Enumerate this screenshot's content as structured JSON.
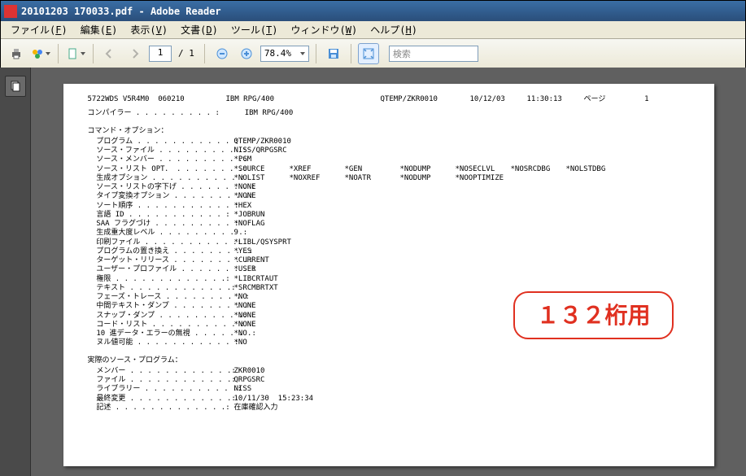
{
  "window": {
    "title": "20101203 170033.pdf - Adobe Reader"
  },
  "menubar": {
    "items": [
      {
        "label": "ファイル",
        "accel": "F"
      },
      {
        "label": "編集",
        "accel": "E"
      },
      {
        "label": "表示",
        "accel": "V"
      },
      {
        "label": "文書",
        "accel": "D"
      },
      {
        "label": "ツール",
        "accel": "T"
      },
      {
        "label": "ウィンドウ",
        "accel": "W"
      },
      {
        "label": "ヘルプ",
        "accel": "H"
      }
    ]
  },
  "toolbar": {
    "page_current": "1",
    "page_separator": "/",
    "page_total": "1",
    "zoom": "78.4%",
    "search_placeholder": "検索"
  },
  "document": {
    "header": {
      "left": "5722WDS V5R4M0  060210",
      "center": "IBM RPG/400",
      "right1": "QTEMP/ZKR0010",
      "right2": "10/12/03",
      "right3": "11:30:13",
      "page_label": "ページ",
      "page_no": "1"
    },
    "compiler_label": "コンパイラー . . . . . . . . . :",
    "compiler_value": "IBM RPG/400",
    "cmd_options_label": "コマンド・オプション：",
    "options": [
      {
        "label": "プログラム",
        "values": [
          "QTEMP/ZKR0010"
        ]
      },
      {
        "label": "ソース・ファイル",
        "values": [
          "NISS/QRPGSRC"
        ]
      },
      {
        "label": "ソース・メンバー",
        "values": [
          "*PGM"
        ]
      },
      {
        "label": "ソース・リスト OPT．",
        "values": [
          "*SOURCE",
          "*XREF",
          "*GEN",
          "*NODUMP",
          "*NOSECLVL",
          "*NOSRCDBG",
          "*NOLSTDBG"
        ]
      },
      {
        "label": "生成オプション",
        "values": [
          "*NOLIST",
          "*NOXREF",
          "*NOATR",
          "*NODUMP",
          "*NOOPTIMIZE"
        ]
      },
      {
        "label": "ソース・リストの字下げ",
        "values": [
          "*NONE"
        ]
      },
      {
        "label": "タイプ変換オプション",
        "values": [
          "*NONE"
        ]
      },
      {
        "label": "ソート順序",
        "values": [
          "*HEX"
        ]
      },
      {
        "label": "言語 ID",
        "values": [
          "*JOBRUN"
        ]
      },
      {
        "label": "SAA フラグづけ",
        "values": [
          "*NOFLAG"
        ]
      },
      {
        "label": "生成重大度レベル",
        "values": [
          "9"
        ]
      },
      {
        "label": "印刷ファイル",
        "values": [
          "*LIBL/QSYSPRT"
        ]
      },
      {
        "label": "プログラムの置き換え",
        "values": [
          "*YES"
        ]
      },
      {
        "label": "ターゲット・リリース",
        "values": [
          "*CURRENT"
        ]
      },
      {
        "label": "ユーザー・プロファイル",
        "values": [
          "*USER"
        ]
      },
      {
        "label": "権限",
        "values": [
          "*LIBCRTAUT"
        ]
      },
      {
        "label": "テキスト",
        "values": [
          "*SRCMBRTXT"
        ]
      },
      {
        "label": "フェーズ・トレース",
        "values": [
          "*NO"
        ]
      },
      {
        "label": "中間テキスト・ダンプ",
        "values": [
          "*NONE"
        ]
      },
      {
        "label": "スナップ・ダンプ",
        "values": [
          "*NONE"
        ]
      },
      {
        "label": "コード・リスト",
        "values": [
          "*NONE"
        ]
      },
      {
        "label": "10 進データ・エラーの無視",
        "values": [
          "*NO"
        ]
      },
      {
        "label": "ヌル値可能",
        "values": [
          "*NO"
        ]
      }
    ],
    "actual_src_label": "実際のソース・プログラム：",
    "actual_src": [
      {
        "label": "メンバー",
        "value": "ZKR0010"
      },
      {
        "label": "ファイル",
        "value": "QRPGSRC"
      },
      {
        "label": "ライブラリー",
        "value": "NISS"
      },
      {
        "label": "最終変更",
        "value": "10/11/30  15:23:34"
      },
      {
        "label": "記述",
        "value": "在庫確認入力"
      }
    ],
    "annotation": "１３２桁用"
  },
  "colors": {
    "titlebar_top": "#3a6ea5",
    "titlebar_bottom": "#2a4e7a",
    "menubar_bg": "#ece9d8",
    "workarea_bg": "#606060",
    "sidebar_bg": "#4a4a4a",
    "page_bg": "#ffffff",
    "annotation_border": "#e03020",
    "annotation_text": "#e03020"
  }
}
